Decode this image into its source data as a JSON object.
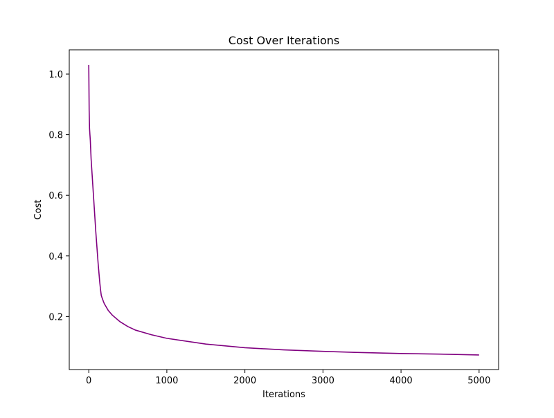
{
  "chart_data": {
    "type": "line",
    "title": "Cost Over Iterations",
    "xlabel": "Iterations",
    "ylabel": "Cost",
    "xlim": [
      -250,
      5250
    ],
    "ylim": [
      0.025,
      1.08
    ],
    "xticks": [
      0,
      1000,
      2000,
      3000,
      4000,
      5000
    ],
    "yticks": [
      0.2,
      0.4,
      0.6,
      0.8,
      1.0
    ],
    "ytick_labels": [
      "0.2",
      "0.4",
      "0.6",
      "0.8",
      "1.0"
    ],
    "grid": false,
    "legend": false,
    "line_color": "#800080",
    "series": [
      {
        "x": [
          0,
          5,
          10,
          15,
          20,
          25,
          30,
          40,
          50,
          60,
          70,
          80,
          90,
          100,
          110,
          120,
          130,
          140,
          150,
          160,
          170,
          180,
          190,
          200,
          250,
          300,
          400,
          500,
          600,
          800,
          1000,
          1500,
          2000,
          2500,
          3000,
          3500,
          4000,
          4500,
          5000
        ],
        "y": [
          1.03,
          0.88,
          0.82,
          0.8,
          0.78,
          0.75,
          0.72,
          0.68,
          0.64,
          0.6,
          0.56,
          0.52,
          0.48,
          0.445,
          0.41,
          0.375,
          0.345,
          0.315,
          0.29,
          0.27,
          0.262,
          0.255,
          0.248,
          0.242,
          0.22,
          0.205,
          0.183,
          0.167,
          0.155,
          0.14,
          0.128,
          0.109,
          0.097,
          0.09,
          0.085,
          0.081,
          0.078,
          0.076,
          0.073
        ]
      }
    ]
  }
}
